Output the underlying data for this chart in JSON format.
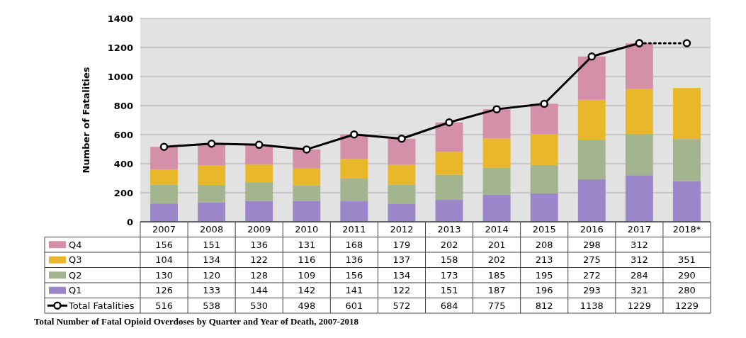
{
  "chart_data": {
    "type": "bar",
    "stacked": true,
    "ylabel": "Number of Fatalities",
    "categories": [
      "2007",
      "2008",
      "2009",
      "2010",
      "2011",
      "2012",
      "2013",
      "2014",
      "2015",
      "2016",
      "2017",
      "2018*"
    ],
    "ylim": [
      0,
      1400
    ],
    "yticks": [
      0,
      200,
      400,
      600,
      800,
      1000,
      1200,
      1400
    ],
    "grid": "y",
    "legend": "bottom",
    "data_labels": true,
    "series": [
      {
        "name": "Q1",
        "color": "#9a86c8",
        "values": [
          126,
          133,
          144,
          142,
          141,
          122,
          151,
          187,
          196,
          293,
          321,
          280
        ]
      },
      {
        "name": "Q2",
        "color": "#a3b58e",
        "values": [
          130,
          120,
          128,
          109,
          156,
          134,
          173,
          185,
          195,
          272,
          284,
          290
        ]
      },
      {
        "name": "Q3",
        "color": "#e8b82a",
        "values": [
          104,
          134,
          122,
          116,
          136,
          137,
          158,
          202,
          213,
          275,
          312,
          351
        ]
      },
      {
        "name": "Q4",
        "color": "#d490a8",
        "values": [
          156,
          151,
          136,
          131,
          168,
          179,
          202,
          201,
          208,
          298,
          312,
          null
        ]
      },
      {
        "name": "Total Fatalities",
        "type": "line",
        "color": "#000000",
        "marker": "circle",
        "line_style": "solid",
        "values": [
          516,
          538,
          530,
          498,
          601,
          572,
          684,
          775,
          812,
          1138,
          1229,
          null
        ],
        "value_labels": [
          "516",
          "538",
          "530",
          "498",
          "601",
          "572",
          "684",
          "775",
          "812",
          "1138",
          "1229",
          "1229"
        ]
      },
      {
        "type": "line",
        "color": "#000000",
        "marker": "circle",
        "line_style": "dotted",
        "values": [
          null,
          null,
          null,
          null,
          null,
          null,
          null,
          null,
          null,
          null,
          1229,
          1229
        ],
        "value_labels": [
          null,
          null,
          null,
          null,
          null,
          null,
          null,
          null,
          null,
          null,
          null,
          null
        ]
      }
    ],
    "annotations": [
      "Total Number of Fatal Opioid Overdoses by Quarter and Year of Death, 2007-2018"
    ]
  }
}
